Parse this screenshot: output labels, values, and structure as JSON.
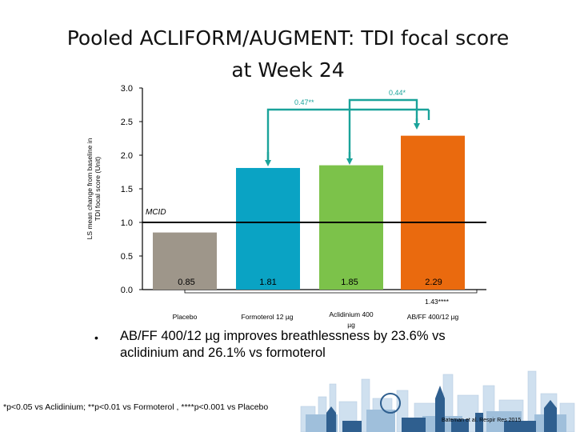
{
  "title_line1": "Pooled ACLIFORM/AUGMENT: TDI focal score",
  "title_line2": "at Week 24",
  "chart_data": {
    "type": "bar",
    "title": "Pooled ACLIFORM/AUGMENT: TDI focal score at Week 24",
    "ylabel_line1": "LS mean change from baseline in",
    "ylabel_line2": "TDI focal score (Unit)",
    "ylim": [
      0,
      3.0
    ],
    "yticks": [
      "0.0",
      "0.5",
      "1.0",
      "1.5",
      "2.0",
      "2.5",
      "3.0"
    ],
    "categories": [
      "Placebo",
      "Formoterol 12 µg",
      "Aclidinium 400 µg",
      "AB/FF 400/12 µg"
    ],
    "values": [
      0.85,
      1.81,
      1.85,
      2.29
    ],
    "value_labels": [
      "0.85",
      "1.81",
      "1.85",
      "2.29"
    ],
    "colors": [
      "#9e968a",
      "#0aa3c4",
      "#7cc24a",
      "#ea6a0e"
    ],
    "mcid": {
      "value": 1.0,
      "label": "MCID"
    },
    "comparisons": [
      {
        "label": "0.47**",
        "from": 1,
        "to": 3,
        "color": "#1aa39a"
      },
      {
        "label": "0.44*",
        "from": 2,
        "to": 3,
        "color": "#1aa39a"
      },
      {
        "label": "1.43****",
        "from": 0,
        "to": 3
      }
    ]
  },
  "bullet": "AB/FF 400/12 µg improves breathlessness by 23.6% vs aclidinium and 26.1% vs formoterol",
  "footnote": "*p<0.05 vs Aclidinium; **p<0.01 vs Formoterol , ****p<0.001 vs Placebo",
  "citation": "Bateman et al. Respir Res 2015"
}
